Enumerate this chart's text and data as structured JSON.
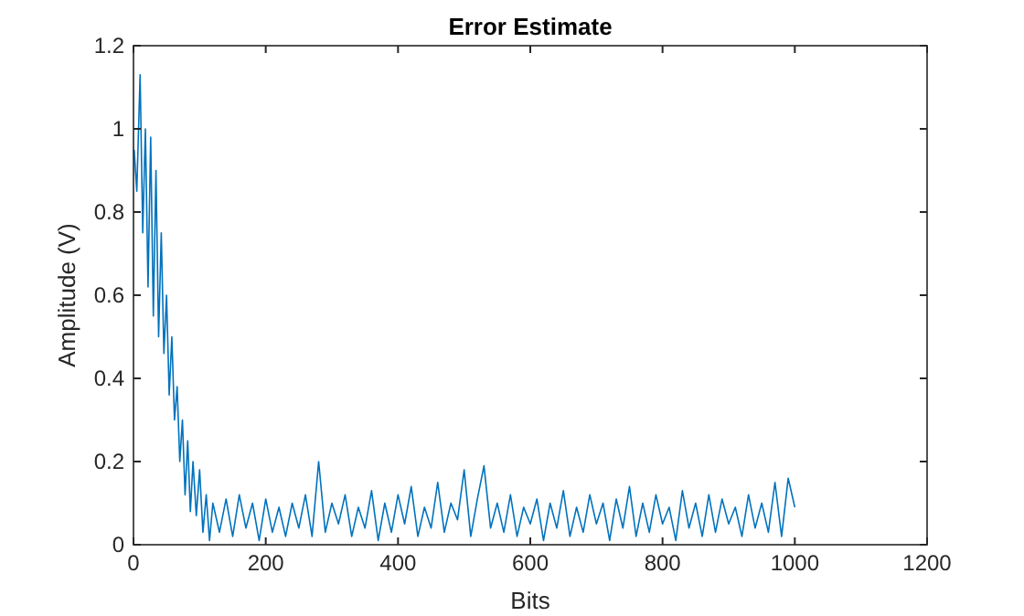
{
  "chart_data": {
    "type": "line",
    "title": "Error Estimate",
    "xlabel": "Bits",
    "ylabel": "Amplitude (V)",
    "xlim": [
      0,
      1200
    ],
    "xticks": [
      0,
      200,
      400,
      600,
      800,
      1000,
      1200
    ],
    "ylim": [
      0,
      1.2
    ],
    "yticks": [
      0,
      0.2,
      0.4,
      0.6,
      0.8,
      1,
      1.2
    ],
    "grid": false,
    "series": [
      {
        "color": "#0072bd",
        "x": [
          1,
          5,
          10,
          14,
          18,
          22,
          26,
          30,
          34,
          38,
          42,
          46,
          50,
          54,
          58,
          62,
          66,
          70,
          74,
          78,
          82,
          86,
          90,
          95,
          100,
          105,
          110,
          115,
          120,
          130,
          140,
          150,
          160,
          170,
          180,
          190,
          200,
          210,
          220,
          230,
          240,
          250,
          260,
          270,
          280,
          290,
          300,
          310,
          320,
          330,
          340,
          350,
          360,
          370,
          380,
          390,
          400,
          410,
          420,
          430,
          440,
          450,
          460,
          470,
          480,
          490,
          500,
          510,
          520,
          530,
          540,
          550,
          560,
          570,
          580,
          590,
          600,
          610,
          620,
          630,
          640,
          650,
          660,
          670,
          680,
          690,
          700,
          710,
          720,
          730,
          740,
          750,
          760,
          770,
          780,
          790,
          800,
          810,
          820,
          830,
          840,
          850,
          860,
          870,
          880,
          890,
          900,
          910,
          920,
          930,
          940,
          950,
          960,
          970,
          980,
          990,
          1000
        ],
        "values": [
          0.95,
          0.85,
          1.13,
          0.75,
          1.0,
          0.62,
          0.98,
          0.55,
          0.9,
          0.5,
          0.75,
          0.46,
          0.6,
          0.36,
          0.5,
          0.3,
          0.38,
          0.2,
          0.3,
          0.12,
          0.25,
          0.08,
          0.2,
          0.07,
          0.18,
          0.03,
          0.12,
          0.01,
          0.1,
          0.03,
          0.11,
          0.02,
          0.12,
          0.04,
          0.1,
          0.01,
          0.11,
          0.03,
          0.09,
          0.02,
          0.1,
          0.04,
          0.12,
          0.02,
          0.2,
          0.03,
          0.1,
          0.05,
          0.12,
          0.02,
          0.09,
          0.04,
          0.13,
          0.01,
          0.1,
          0.03,
          0.12,
          0.05,
          0.14,
          0.02,
          0.09,
          0.04,
          0.15,
          0.03,
          0.1,
          0.06,
          0.18,
          0.02,
          0.11,
          0.19,
          0.04,
          0.1,
          0.03,
          0.12,
          0.02,
          0.09,
          0.05,
          0.11,
          0.01,
          0.1,
          0.04,
          0.13,
          0.02,
          0.09,
          0.03,
          0.12,
          0.05,
          0.1,
          0.01,
          0.11,
          0.04,
          0.14,
          0.02,
          0.1,
          0.03,
          0.12,
          0.05,
          0.09,
          0.01,
          0.13,
          0.04,
          0.1,
          0.02,
          0.12,
          0.03,
          0.11,
          0.05,
          0.09,
          0.02,
          0.12,
          0.04,
          0.1,
          0.03,
          0.15,
          0.02,
          0.16,
          0.09
        ]
      }
    ]
  }
}
